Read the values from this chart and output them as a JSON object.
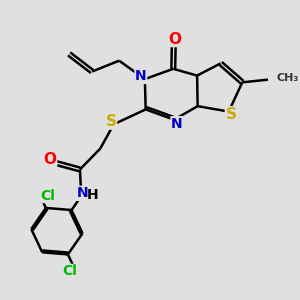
{
  "bg_color": "#e0e0e0",
  "bond_color": "#000000",
  "bond_width": 1.8,
  "atom_colors": {
    "O": "#ff0000",
    "N": "#0000cc",
    "S": "#ccaa00",
    "Cl": "#00bb00",
    "C": "#000000",
    "H": "#000000"
  },
  "font_size": 10,
  "fig_size": [
    3.0,
    3.0
  ],
  "dpi": 100
}
